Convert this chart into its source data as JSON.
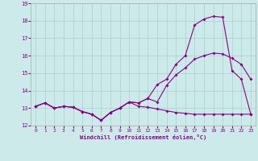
{
  "xlabel": "Windchill (Refroidissement éolien,°C)",
  "background_color": "#cdeaea",
  "line_color": "#880088",
  "xlim": [
    -0.5,
    23.5
  ],
  "ylim": [
    12,
    19
  ],
  "yticks": [
    12,
    13,
    14,
    15,
    16,
    17,
    18,
    19
  ],
  "xticks": [
    0,
    1,
    2,
    3,
    4,
    5,
    6,
    7,
    8,
    9,
    10,
    11,
    12,
    13,
    14,
    15,
    16,
    17,
    18,
    19,
    20,
    21,
    22,
    23
  ],
  "series1_x": [
    0,
    1,
    2,
    3,
    4,
    5,
    6,
    7,
    8,
    9,
    10,
    11,
    12,
    13,
    14,
    15,
    16,
    17,
    18,
    19,
    20,
    21,
    22,
    23
  ],
  "series1_y": [
    13.1,
    13.3,
    13.0,
    13.1,
    13.05,
    12.8,
    12.65,
    12.3,
    12.75,
    13.0,
    13.35,
    13.1,
    13.05,
    12.95,
    12.85,
    12.75,
    12.7,
    12.65,
    12.65,
    12.65,
    12.65,
    12.65,
    12.65,
    12.65
  ],
  "series2_x": [
    0,
    1,
    2,
    3,
    4,
    5,
    6,
    7,
    8,
    9,
    10,
    11,
    12,
    13,
    14,
    15,
    16,
    17,
    18,
    19,
    20,
    21,
    22,
    23
  ],
  "series2_y": [
    13.1,
    13.3,
    13.0,
    13.1,
    13.05,
    12.8,
    12.65,
    12.3,
    12.75,
    13.0,
    13.35,
    13.3,
    13.55,
    13.35,
    14.3,
    14.9,
    15.3,
    15.8,
    16.0,
    16.15,
    16.1,
    15.85,
    15.5,
    14.65
  ],
  "series3_x": [
    0,
    1,
    2,
    3,
    4,
    5,
    6,
    7,
    8,
    9,
    10,
    11,
    12,
    13,
    14,
    15,
    16,
    17,
    18,
    19,
    20,
    21,
    22,
    23
  ],
  "series3_y": [
    13.1,
    13.3,
    13.0,
    13.1,
    13.05,
    12.8,
    12.65,
    12.3,
    12.75,
    13.0,
    13.35,
    13.3,
    13.55,
    14.35,
    14.65,
    15.5,
    16.0,
    17.75,
    18.1,
    18.25,
    18.2,
    15.15,
    14.65,
    12.65
  ],
  "grid_color": "#aacece",
  "marker": "D",
  "markersize": 2.0,
  "linewidth": 0.8
}
